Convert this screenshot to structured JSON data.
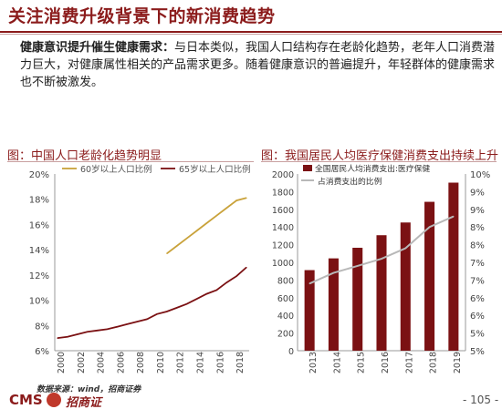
{
  "page": {
    "title": "关注消费升级背景下的新消费趋势",
    "para_lead": "健康意识提升催生健康需求：",
    "para_body": "与日本类似，我国人口结构存在老龄化趋势，老年人口消费潜力巨大，对健康属性相关的产品需求更多。随着健康意识的普遍提升，年轻群体的健康需求也不断被激发。",
    "source": "数据来源：wind，招商证券",
    "logo_text": "CMS",
    "logo_cn": "招商证券",
    "page_number": "- 105 -"
  },
  "colors": {
    "brand": "#8b1b1b",
    "line_60": "#c9a23a",
    "line_65": "#7b1113",
    "bar": "#7b1113",
    "share_line": "#b8b8b8"
  },
  "chart_data": [
    {
      "type": "line",
      "title": "图：中国人口老龄化趋势明显",
      "x": [
        2000,
        2001,
        2002,
        2003,
        2004,
        2005,
        2006,
        2007,
        2008,
        2009,
        2010,
        2011,
        2012,
        2013,
        2014,
        2015,
        2016,
        2017,
        2018,
        2019
      ],
      "xticks": [
        "2000",
        "2002",
        "2004",
        "2006",
        "2008",
        "2010",
        "2012",
        "2014",
        "2016",
        "2018"
      ],
      "yticks": [
        "6%",
        "8%",
        "10%",
        "12%",
        "14%",
        "16%",
        "18%",
        "20%"
      ],
      "ylim": [
        6,
        20
      ],
      "legend_position": "top-left",
      "grid": false,
      "series": [
        {
          "name": "60岁以上人口比例",
          "color": "#c9a23a",
          "values": [
            null,
            null,
            null,
            null,
            null,
            null,
            null,
            null,
            null,
            null,
            null,
            13.7,
            14.3,
            14.9,
            15.5,
            16.1,
            16.7,
            17.3,
            17.9,
            18.1
          ]
        },
        {
          "name": "65岁以上人口比例",
          "color": "#7b1113",
          "values": [
            7.0,
            7.1,
            7.3,
            7.5,
            7.6,
            7.7,
            7.9,
            8.1,
            8.3,
            8.5,
            8.9,
            9.1,
            9.4,
            9.7,
            10.1,
            10.5,
            10.8,
            11.4,
            11.9,
            12.6
          ]
        }
      ]
    },
    {
      "type": "bar",
      "title": "图：我国居民人均医疗保健消费支出持续上升",
      "categories": [
        "2013",
        "2014",
        "2015",
        "2016",
        "2017",
        "2018",
        "2019"
      ],
      "yticks_left": [
        "0",
        "200",
        "400",
        "600",
        "800",
        "1000",
        "1200",
        "1400",
        "1600",
        "1800",
        "2000"
      ],
      "ylim_left": [
        0,
        2000
      ],
      "yticks_right": [
        "5%",
        "5%",
        "6%",
        "6%",
        "7%",
        "7%",
        "8%",
        "8%",
        "9%",
        "9%",
        "10%"
      ],
      "ylim_right": [
        5,
        10
      ],
      "legend_position": "top-left",
      "grid": false,
      "series": [
        {
          "name": "全国居民人均消费支出:医疗保健",
          "axis": "left",
          "color": "#7b1113",
          "values": [
            912,
            1045,
            1165,
            1307,
            1451,
            1685,
            1902
          ]
        },
        {
          "name": "占消费支出的比例",
          "axis": "right",
          "color": "#b8b8b8",
          "values": [
            6.9,
            7.2,
            7.4,
            7.6,
            7.9,
            8.5,
            8.8
          ]
        }
      ]
    }
  ]
}
